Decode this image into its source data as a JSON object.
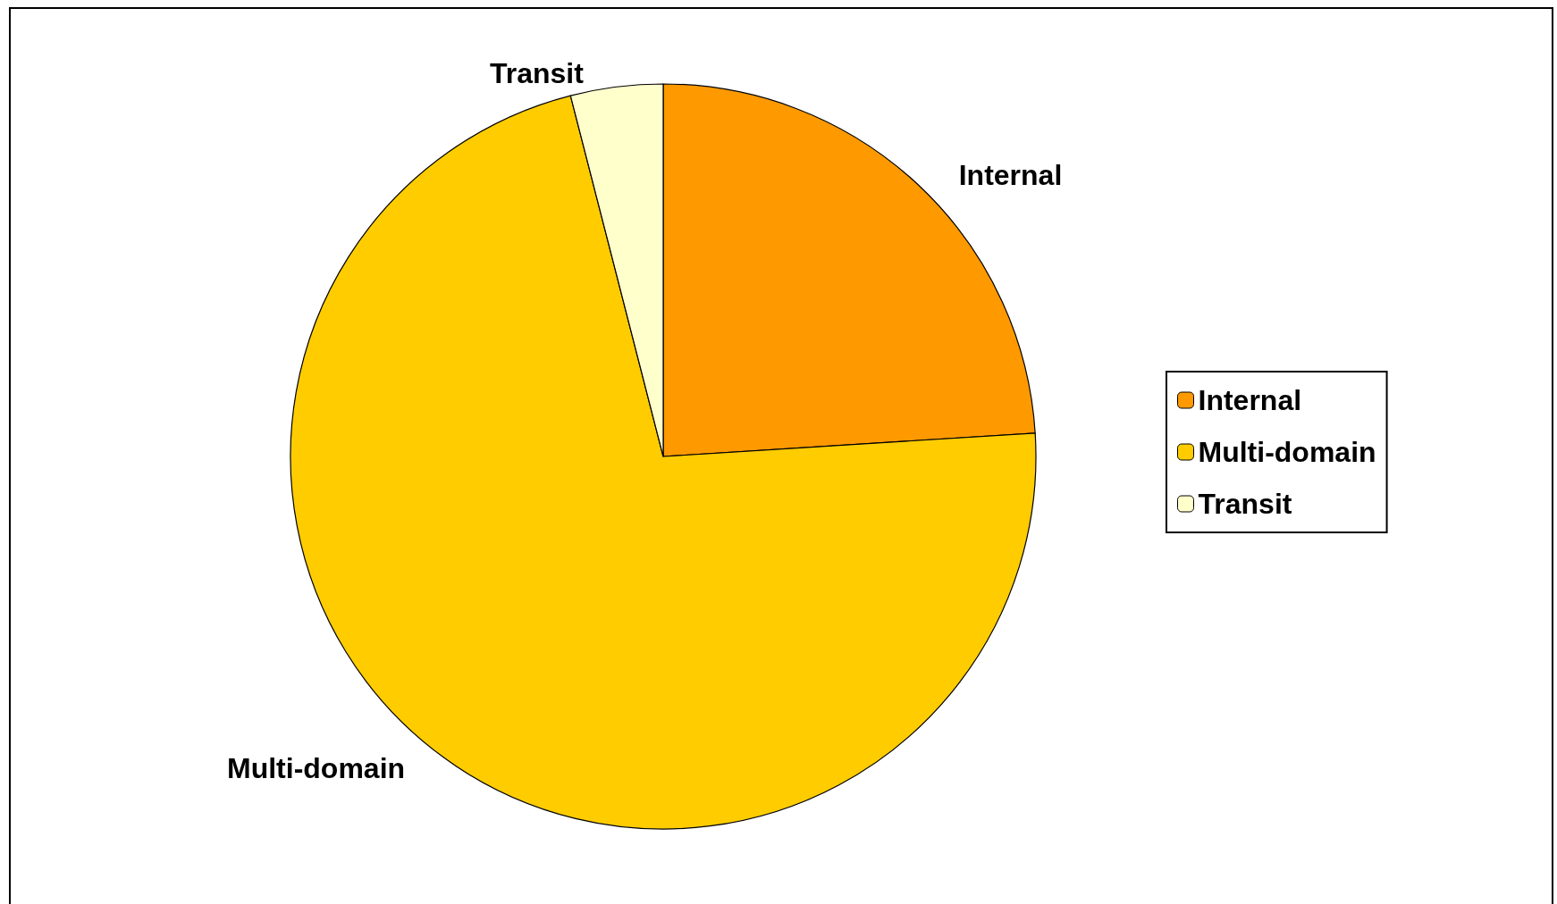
{
  "chart_data": {
    "type": "pie",
    "categories": [
      "Internal",
      "Multi-domain",
      "Transit"
    ],
    "values": [
      24,
      72,
      4
    ],
    "colors": [
      "#ff9900",
      "#ffcc00",
      "#ffffcc"
    ],
    "legend": "right"
  }
}
